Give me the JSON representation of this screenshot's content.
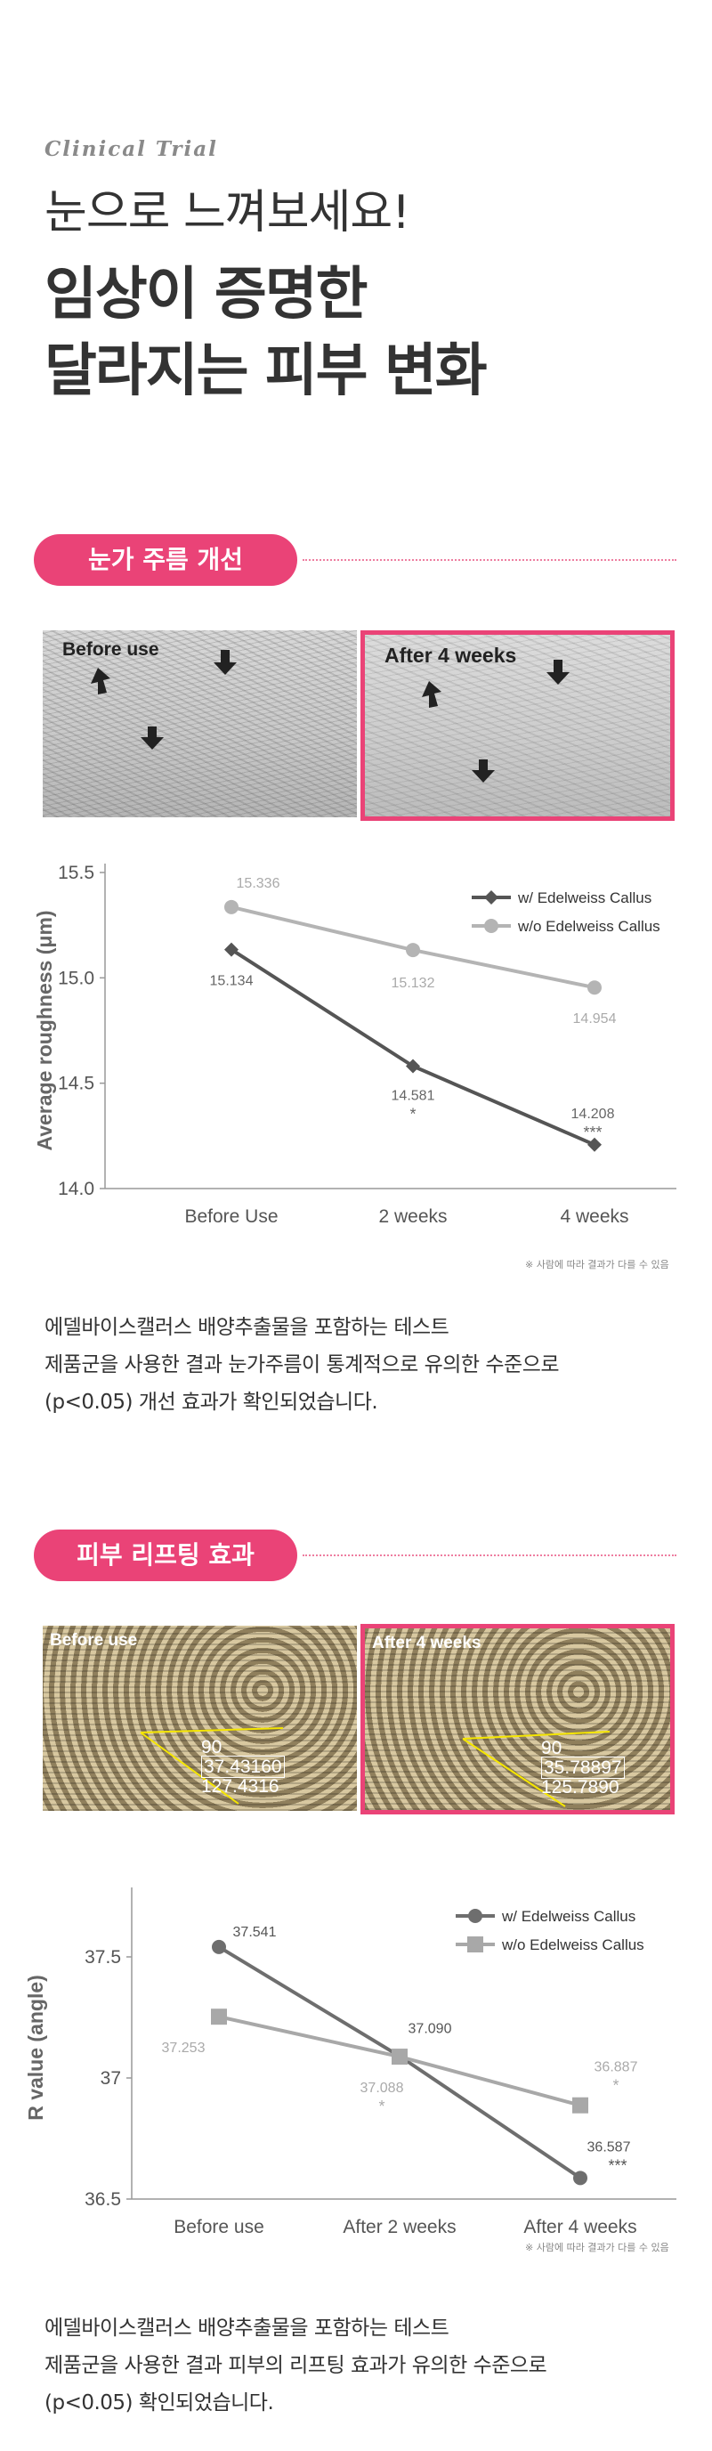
{
  "hero": {
    "eyebrow": "Clinical Trial",
    "headline1": "눈으로 느껴보세요!",
    "headline2_line1": "임상이 증명한",
    "headline2_line2": "달라지는 피부 변화"
  },
  "section1": {
    "badge": "눈가 주름 개선",
    "photo_before_label": "Before use",
    "photo_after_label": "After 4 weeks",
    "note": "※ 사람에 따라 결과가 다를 수 있음",
    "paragraph": [
      "에델바이스캘러스 배양추출물을 포함하는 테스트",
      "제품군을 사용한 결과 눈가주름이 통계적으로 유의한 수준으로",
      "(p<0.05) 개선 효과가 확인되었습니다."
    ]
  },
  "section2": {
    "badge": "피부 리프팅 효과",
    "photo_before_label": "Before use",
    "photo_after_label": "After 4 weeks",
    "before_measure": {
      "angle": "90",
      "r1": "37.43160",
      "r2": "127.4316"
    },
    "after_measure": {
      "angle": "90",
      "r1": "35.78897",
      "r2": "125.7890"
    },
    "note": "※ 사람에 따라 결과가 다를 수 있음",
    "paragraph": [
      "에델바이스캘러스 배양추출물을 포함하는 테스트",
      "제품군을 사용한 결과 피부의 리프팅 효과가 유의한 수준으로",
      "(p<0.05) 확인되었습니다."
    ]
  },
  "chart_data": [
    {
      "type": "line",
      "title": "",
      "xlabel": "",
      "ylabel": "Average roughness (μm)",
      "categories": [
        "Before Use",
        "2 weeks",
        "4 weeks"
      ],
      "ylim": [
        14.0,
        15.5
      ],
      "yticks": [
        "14.0",
        "14.5",
        "15.0",
        "15.5"
      ],
      "grid": false,
      "legend_position": "top-right",
      "series": [
        {
          "name": "w/ Edelweiss Callus",
          "values": [
            15.134,
            14.581,
            14.208
          ],
          "labels": [
            "15.134",
            "14.581",
            "14.208"
          ],
          "significance": [
            "",
            "*",
            "***"
          ],
          "color": "#555555",
          "marker": "diamond"
        },
        {
          "name": "w/o Edelweiss Callus",
          "values": [
            15.336,
            15.132,
            14.954
          ],
          "labels": [
            "15.336",
            "15.132",
            "14.954"
          ],
          "significance": [
            "",
            "",
            ""
          ],
          "color": "#b4b4b4",
          "marker": "circle"
        }
      ]
    },
    {
      "type": "line",
      "title": "",
      "xlabel": "",
      "ylabel": "R value (angle)",
      "categories": [
        "Before use",
        "After 2 weeks",
        "After 4 weeks"
      ],
      "ylim": [
        36.5,
        37.75
      ],
      "yticks": [
        "36.5",
        "37",
        "37.5"
      ],
      "ytick_values": [
        36.5,
        37.0,
        37.5
      ],
      "grid": false,
      "legend_position": "top-right",
      "series": [
        {
          "name": "w/ Edelweiss Callus",
          "values": [
            37.541,
            37.09,
            36.587
          ],
          "labels": [
            "37.541",
            "37.090",
            "36.587"
          ],
          "significance": [
            "",
            "",
            "***"
          ],
          "color": "#6e6e6e",
          "marker": "circle"
        },
        {
          "name": "w/o Edelweiss Callus",
          "values": [
            37.253,
            37.088,
            36.887
          ],
          "labels": [
            "37.253",
            "37.088",
            "36.887"
          ],
          "significance": [
            "",
            "*",
            "*"
          ],
          "color": "#a8a8a8",
          "marker": "square"
        }
      ]
    }
  ]
}
